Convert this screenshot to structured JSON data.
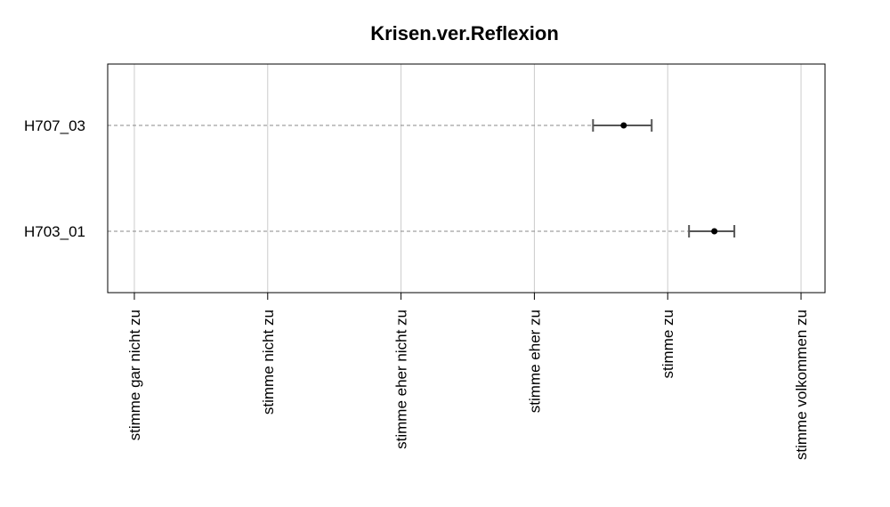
{
  "chart_data": {
    "type": "scatter",
    "title": "Krisen.ver.Reflexion",
    "xlabel": "",
    "ylabel": "",
    "x_categories": [
      "stimme gar nicht zu",
      "stimme nicht zu",
      "stimme eher nicht zu",
      "stimme eher zu",
      "stimme zu",
      "stimme volkommen zu"
    ],
    "xlim": [
      0.8,
      6.18
    ],
    "grid": true,
    "items": [
      {
        "label": "H707_03",
        "mean": 4.67,
        "lower": 4.44,
        "upper": 4.88
      },
      {
        "label": "H703_01",
        "mean": 5.35,
        "lower": 5.16,
        "upper": 5.5
      }
    ],
    "colors": {
      "point": "#000000",
      "errorbar": "#555555",
      "guide": "#888888",
      "grid": "#cccccc",
      "frame": "#000000"
    }
  }
}
